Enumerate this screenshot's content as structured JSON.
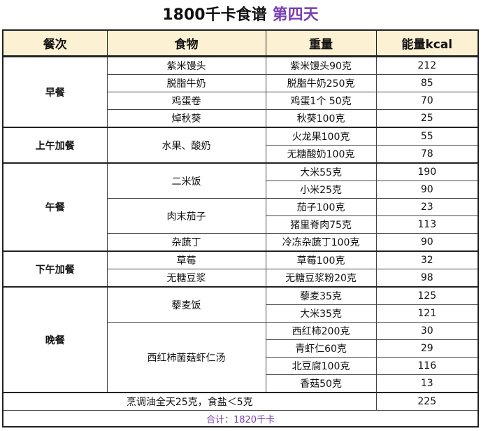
{
  "title": {
    "main": "1800千卡食谱",
    "sub": "第四天"
  },
  "headers": [
    "餐次",
    "食物",
    "重量",
    "能量kcal"
  ],
  "meals": {
    "breakfast": "早餐",
    "snack_am": "上午加餐",
    "lunch": "午餐",
    "snack_pm": "下午加餐",
    "dinner": "晚餐"
  },
  "foods": {
    "f1": "紫米馒头",
    "f2": "脱脂牛奶",
    "f3": "鸡蛋卷",
    "f4": "焯秋葵",
    "f5": "水果、酸奶",
    "f6": "二米饭",
    "f7": "肉末茄子",
    "f8": "杂蔬丁",
    "f9": "草莓",
    "f10": "无糖豆浆",
    "f11": "藜麦饭",
    "f12": "西红柿菌菇虾仁汤"
  },
  "rows": [
    {
      "weight": "紫米馒头90克",
      "kcal": "212"
    },
    {
      "weight": "脱脂牛奶250克",
      "kcal": "85"
    },
    {
      "weight": "鸡蛋1个 50克",
      "kcal": "70"
    },
    {
      "weight": "秋葵100克",
      "kcal": "25"
    },
    {
      "weight": "火龙果100克",
      "kcal": "55"
    },
    {
      "weight": "无糖酸奶100克",
      "kcal": "78"
    },
    {
      "weight": "大米55克",
      "kcal": "190"
    },
    {
      "weight": "小米25克",
      "kcal": "90"
    },
    {
      "weight": "茄子100克",
      "kcal": "23"
    },
    {
      "weight": "猪里脊肉75克",
      "kcal": "113"
    },
    {
      "weight": "冷冻杂蔬丁100克",
      "kcal": "90"
    },
    {
      "weight": "草莓100克",
      "kcal": "32"
    },
    {
      "weight": "无糖豆浆粉20克",
      "kcal": "98"
    },
    {
      "weight": "藜麦35克",
      "kcal": "125"
    },
    {
      "weight": "大米35克",
      "kcal": "121"
    },
    {
      "weight": "西红柿200克",
      "kcal": "30"
    },
    {
      "weight": "青虾仁60克",
      "kcal": "29"
    },
    {
      "weight": "北豆腐100克",
      "kcal": "116"
    },
    {
      "weight": "香菇50克",
      "kcal": "13"
    }
  ],
  "oil": {
    "text": "烹调油全天25克，食盐＜5克",
    "kcal": "225"
  },
  "total": "合计：1820千卡"
}
